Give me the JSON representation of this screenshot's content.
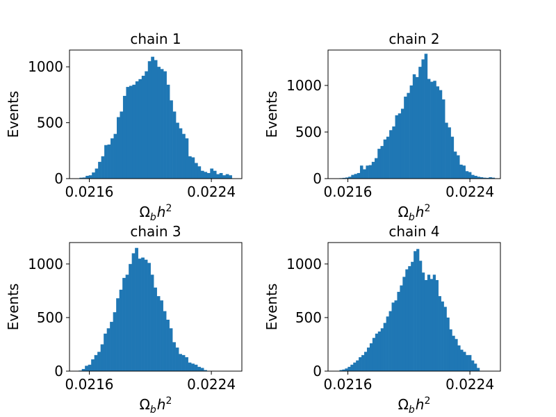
{
  "figure": {
    "bar_color": "#1f77b4",
    "x_range": [
      0.02147,
      0.0226
    ],
    "x_ticks": [
      0.0216,
      0.0224
    ],
    "x_tick_labels": [
      "0.0216",
      "0.0224"
    ]
  },
  "chart_data": [
    {
      "type": "bar",
      "title": "chain 1",
      "xlabel": "Ω_b h^2",
      "ylabel": "Events",
      "ylim": [
        0,
        1150
      ],
      "y_ticks": [
        0,
        500,
        1000
      ],
      "y_tick_labels": [
        "0",
        "500",
        "1000"
      ],
      "x_start": 0.021535,
      "bin_width": 2.04e-05,
      "values": [
        8,
        10,
        25,
        30,
        55,
        90,
        150,
        200,
        300,
        305,
        360,
        400,
        550,
        600,
        740,
        820,
        830,
        840,
        870,
        890,
        920,
        960,
        1050,
        1090,
        1060,
        1000,
        980,
        960,
        840,
        700,
        600,
        500,
        450,
        400,
        360,
        200,
        190,
        140,
        110,
        70,
        60,
        50,
        90,
        70,
        40,
        50,
        30,
        40,
        30
      ]
    },
    {
      "type": "bar",
      "title": "chain 2",
      "xlabel": "Ω_b h^2",
      "ylabel": "Events",
      "ylim": [
        0,
        1380
      ],
      "y_ticks": [
        0,
        500,
        1000
      ],
      "y_tick_labels": [
        "0",
        "500",
        "1000"
      ],
      "x_start": 0.021545,
      "bin_width": 1.92e-05,
      "values": [
        5,
        8,
        12,
        20,
        40,
        50,
        60,
        140,
        100,
        140,
        145,
        180,
        220,
        320,
        350,
        420,
        450,
        520,
        560,
        680,
        700,
        750,
        880,
        920,
        1000,
        1120,
        1090,
        1200,
        1280,
        1340,
        1070,
        1040,
        1050,
        990,
        950,
        850,
        600,
        550,
        450,
        290,
        250,
        150,
        140,
        80,
        70,
        40,
        30,
        20,
        15,
        10,
        8,
        15,
        10
      ]
    },
    {
      "type": "bar",
      "title": "chain 3",
      "xlabel": "Ω_b h^2",
      "ylabel": "Events",
      "ylim": [
        0,
        1200
      ],
      "y_ticks": [
        0,
        500,
        1000
      ],
      "y_tick_labels": [
        "0",
        "500",
        "1000"
      ],
      "x_start": 0.02153,
      "bin_width": 2.05e-05,
      "values": [
        5,
        20,
        50,
        60,
        110,
        150,
        180,
        250,
        350,
        400,
        460,
        550,
        680,
        760,
        870,
        900,
        1000,
        1100,
        1150,
        1050,
        1060,
        1040,
        1010,
        900,
        780,
        700,
        660,
        560,
        480,
        400,
        270,
        220,
        160,
        150,
        130,
        80,
        70,
        60,
        40,
        30,
        10
      ]
    },
    {
      "type": "bar",
      "title": "chain 4",
      "xlabel": "Ω_b h^2",
      "ylabel": "Events",
      "ylim": [
        0,
        1200
      ],
      "y_ticks": [
        0,
        500,
        1000
      ],
      "y_tick_labels": [
        "0",
        "500",
        "1000"
      ],
      "x_start": 0.021545,
      "bin_width": 1.8e-05,
      "values": [
        10,
        15,
        25,
        40,
        60,
        80,
        100,
        130,
        150,
        180,
        220,
        260,
        310,
        350,
        370,
        400,
        450,
        510,
        560,
        640,
        660,
        740,
        800,
        880,
        950,
        980,
        1020,
        1120,
        1140,
        1030,
        920,
        850,
        900,
        860,
        900,
        850,
        700,
        650,
        600,
        500,
        390,
        330,
        300,
        240,
        200,
        180,
        150,
        150,
        100,
        70,
        30
      ]
    }
  ]
}
